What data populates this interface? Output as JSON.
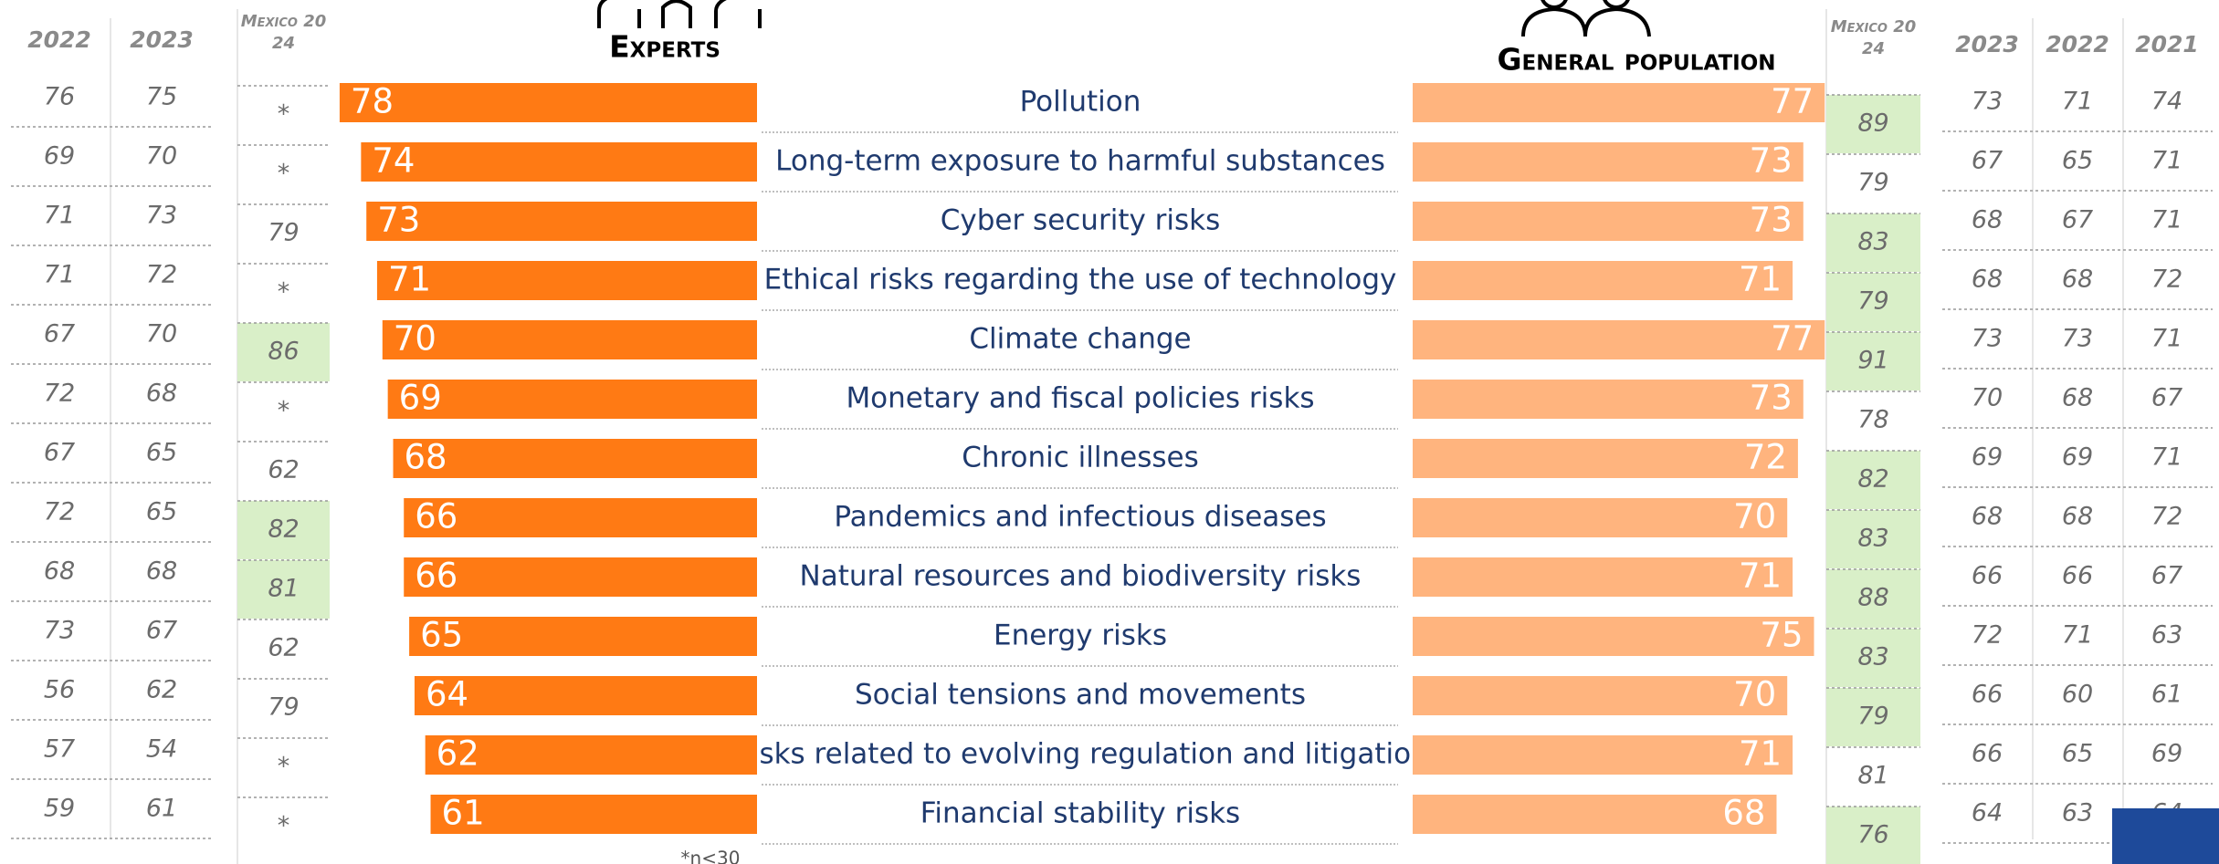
{
  "chart_data": {
    "type": "bar",
    "categories": [
      "Pollution",
      "Long-term exposure to harmful substances",
      "Cyber security risks",
      "Ethical risks regarding the use of technology",
      "Climate change",
      "Monetary and fiscal policies risks",
      "Chronic illnesses",
      "Pandemics and infectious diseases",
      "Natural resources and biodiversity risks",
      "Energy risks",
      "Social tensions and movements",
      "Risks related to evolving regulation and litigation",
      "Financial stability risks"
    ],
    "series": [
      {
        "name": "Experts",
        "color": "#ff7a14",
        "values": [
          78,
          74,
          73,
          71,
          70,
          69,
          68,
          66,
          66,
          65,
          64,
          62,
          61
        ]
      },
      {
        "name": "General population",
        "color": "#ffb47e",
        "values": [
          77,
          73,
          73,
          71,
          77,
          73,
          72,
          70,
          71,
          75,
          70,
          71,
          68
        ]
      }
    ],
    "xlim": [
      0,
      100
    ],
    "footnote": "*n<30"
  },
  "tables": {
    "left": {
      "columns": [
        "2022",
        "2023"
      ],
      "rows": [
        [
          76,
          75
        ],
        [
          69,
          70
        ],
        [
          71,
          73
        ],
        [
          71,
          72
        ],
        [
          67,
          70
        ],
        [
          72,
          68
        ],
        [
          67,
          65
        ],
        [
          72,
          65
        ],
        [
          68,
          68
        ],
        [
          73,
          67
        ],
        [
          56,
          62
        ],
        [
          57,
          54
        ],
        [
          59,
          61
        ]
      ]
    },
    "experts_mexico": {
      "header": "Mexico 2024",
      "values": [
        "*",
        "*",
        79,
        "*",
        86,
        "*",
        62,
        82,
        81,
        62,
        79,
        "*",
        "*"
      ],
      "highlighted": [
        false,
        false,
        false,
        false,
        true,
        false,
        false,
        true,
        true,
        false,
        false,
        false,
        false
      ]
    },
    "population_mexico": {
      "header": "Mexico 2024",
      "values": [
        89,
        79,
        83,
        79,
        91,
        78,
        82,
        83,
        88,
        83,
        79,
        81,
        76
      ],
      "highlighted": [
        true,
        false,
        true,
        true,
        true,
        false,
        true,
        true,
        true,
        true,
        true,
        false,
        true
      ]
    },
    "highlight_color": "#d9efc8",
    "right": {
      "columns": [
        "2023",
        "2022",
        "2021"
      ],
      "rows": [
        [
          73,
          71,
          74
        ],
        [
          67,
          65,
          71
        ],
        [
          68,
          67,
          71
        ],
        [
          68,
          68,
          72
        ],
        [
          73,
          73,
          71
        ],
        [
          70,
          68,
          67
        ],
        [
          69,
          69,
          71
        ],
        [
          68,
          68,
          72
        ],
        [
          66,
          66,
          67
        ],
        [
          72,
          71,
          63
        ],
        [
          66,
          60,
          61
        ],
        [
          66,
          65,
          69
        ],
        [
          64,
          63,
          64
        ]
      ]
    }
  }
}
